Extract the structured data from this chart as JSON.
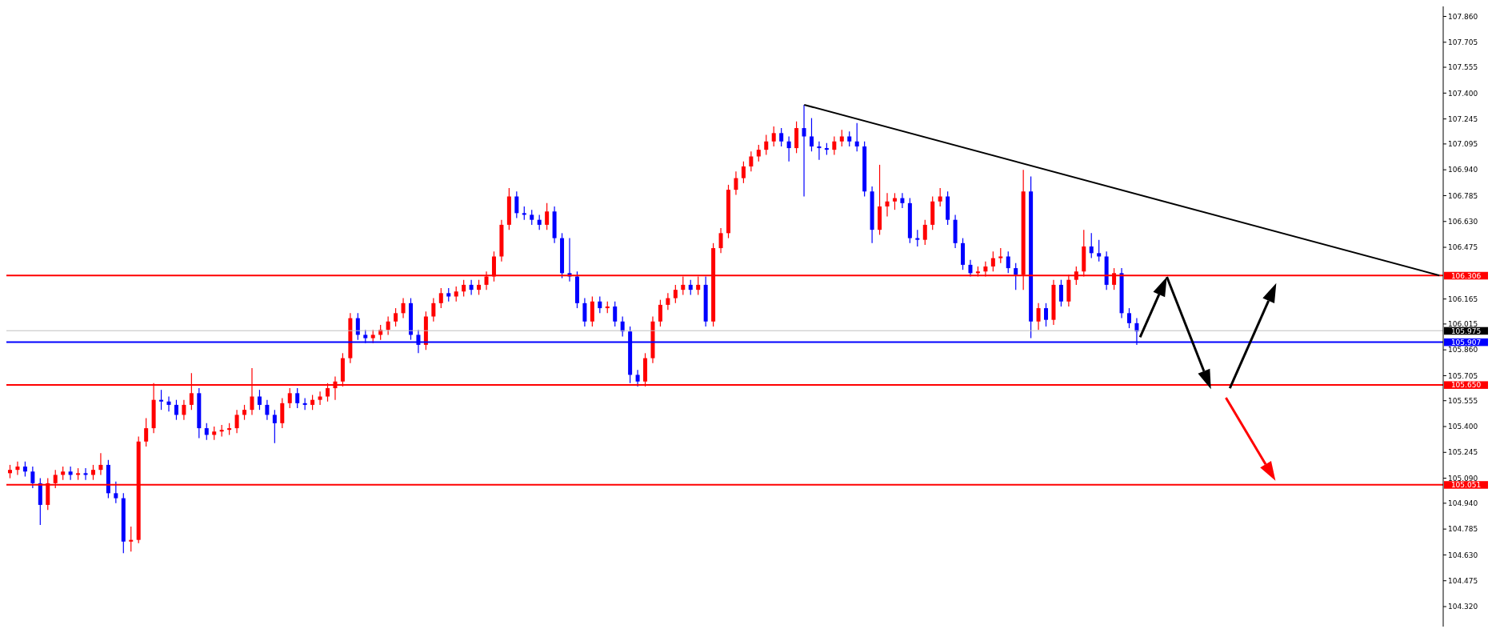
{
  "chart_data": {
    "type": "candlestick",
    "categories": [
      null,
      null,
      null,
      null,
      null,
      null,
      null,
      null,
      null,
      null,
      null,
      null,
      null,
      null,
      null,
      null,
      null,
      null,
      null,
      null,
      null,
      null,
      null,
      null,
      null,
      null,
      null,
      null,
      null,
      null,
      null,
      null,
      null,
      null,
      null,
      null,
      null,
      null,
      null,
      null,
      null,
      null,
      null,
      null,
      null,
      null,
      null,
      null,
      null,
      null,
      null,
      null,
      null,
      null,
      null,
      null,
      null,
      null,
      null,
      null,
      null,
      null,
      null,
      null,
      null,
      null,
      null,
      null,
      null,
      null,
      null,
      null,
      null,
      null,
      null,
      null,
      null,
      null,
      null,
      null,
      null,
      null,
      null,
      null,
      null,
      null,
      null,
      null,
      null,
      null,
      null,
      null,
      null,
      null,
      null,
      null,
      null,
      null,
      null,
      null,
      null,
      null,
      null,
      null,
      null,
      null,
      null,
      null,
      null,
      null,
      null,
      null,
      null,
      null,
      null,
      null,
      null,
      null,
      null,
      null,
      null,
      null,
      null,
      null,
      null,
      null,
      null,
      null,
      null,
      null,
      null,
      null,
      null,
      null,
      null,
      null,
      null,
      null,
      null,
      null,
      null,
      null,
      null,
      null,
      null,
      null,
      null,
      null,
      null,
      null,
      null,
      null,
      null,
      null,
      null,
      null,
      null,
      null,
      null,
      null,
      null,
      null,
      null,
      null,
      null,
      null,
      null,
      null,
      null,
      null,
      null,
      null,
      null,
      null,
      null,
      null,
      null,
      null,
      null,
      null,
      null,
      null,
      null,
      null,
      null,
      null,
      null,
      null,
      null,
      null
    ],
    "ohlc": [
      [
        105.12,
        105.17,
        105.09,
        105.14
      ],
      [
        105.14,
        105.19,
        105.11,
        105.16
      ],
      [
        105.16,
        105.19,
        105.1,
        105.13
      ],
      [
        105.13,
        105.16,
        105.03,
        105.06
      ],
      [
        105.06,
        105.09,
        104.81,
        104.93
      ],
      [
        104.93,
        105.09,
        104.9,
        105.06
      ],
      [
        105.06,
        105.14,
        105.03,
        105.11
      ],
      [
        105.11,
        105.16,
        105.08,
        105.13
      ],
      [
        105.13,
        105.16,
        105.08,
        105.11
      ],
      [
        105.11,
        105.15,
        105.08,
        105.12
      ],
      [
        105.12,
        105.15,
        105.08,
        105.11
      ],
      [
        105.11,
        105.17,
        105.08,
        105.14
      ],
      [
        105.14,
        105.24,
        105.11,
        105.17
      ],
      [
        105.17,
        105.2,
        104.97,
        105.0
      ],
      [
        105.0,
        105.07,
        104.94,
        104.97
      ],
      [
        104.97,
        105.0,
        104.64,
        104.71
      ],
      [
        104.71,
        104.8,
        104.65,
        104.72
      ],
      [
        104.72,
        105.34,
        104.7,
        105.31
      ],
      [
        105.31,
        105.45,
        105.28,
        105.39
      ],
      [
        105.39,
        105.66,
        105.36,
        105.56
      ],
      [
        105.56,
        105.62,
        105.5,
        105.55
      ],
      [
        105.55,
        105.58,
        105.49,
        105.53
      ],
      [
        105.53,
        105.56,
        105.44,
        105.47
      ],
      [
        105.47,
        105.56,
        105.44,
        105.53
      ],
      [
        105.53,
        105.72,
        105.5,
        105.6
      ],
      [
        105.6,
        105.63,
        105.33,
        105.39
      ],
      [
        105.39,
        105.42,
        105.32,
        105.35
      ],
      [
        105.35,
        105.4,
        105.32,
        105.37
      ],
      [
        105.37,
        105.41,
        105.34,
        105.38
      ],
      [
        105.38,
        105.42,
        105.35,
        105.39
      ],
      [
        105.39,
        105.5,
        105.36,
        105.47
      ],
      [
        105.47,
        105.53,
        105.44,
        105.5
      ],
      [
        105.5,
        105.75,
        105.47,
        105.58
      ],
      [
        105.58,
        105.62,
        105.5,
        105.53
      ],
      [
        105.53,
        105.56,
        105.44,
        105.47
      ],
      [
        105.47,
        105.5,
        105.3,
        105.42
      ],
      [
        105.42,
        105.57,
        105.39,
        105.54
      ],
      [
        105.54,
        105.63,
        105.51,
        105.6
      ],
      [
        105.6,
        105.63,
        105.51,
        105.54
      ],
      [
        105.54,
        105.57,
        105.5,
        105.53
      ],
      [
        105.53,
        105.59,
        105.5,
        105.56
      ],
      [
        105.56,
        105.61,
        105.53,
        105.58
      ],
      [
        105.58,
        105.66,
        105.55,
        105.63
      ],
      [
        105.63,
        105.7,
        105.56,
        105.67
      ],
      [
        105.67,
        105.84,
        105.64,
        105.81
      ],
      [
        105.81,
        106.08,
        105.78,
        106.05
      ],
      [
        106.05,
        106.08,
        105.92,
        105.95
      ],
      [
        105.95,
        105.98,
        105.9,
        105.93
      ],
      [
        105.93,
        105.98,
        105.9,
        105.95
      ],
      [
        105.95,
        106.01,
        105.92,
        105.98
      ],
      [
        105.98,
        106.06,
        105.95,
        106.03
      ],
      [
        106.03,
        106.11,
        106.0,
        106.08
      ],
      [
        106.08,
        106.17,
        106.05,
        106.14
      ],
      [
        106.14,
        106.17,
        105.92,
        105.95
      ],
      [
        105.95,
        105.98,
        105.84,
        105.89
      ],
      [
        105.89,
        106.09,
        105.86,
        106.06
      ],
      [
        106.06,
        106.17,
        106.03,
        106.14
      ],
      [
        106.14,
        106.23,
        106.11,
        106.2
      ],
      [
        106.2,
        106.23,
        106.15,
        106.18
      ],
      [
        106.18,
        106.24,
        106.15,
        106.21
      ],
      [
        106.21,
        106.28,
        106.18,
        106.25
      ],
      [
        106.25,
        106.28,
        106.19,
        106.22
      ],
      [
        106.22,
        106.28,
        106.19,
        106.25
      ],
      [
        106.25,
        106.33,
        106.22,
        106.3
      ],
      [
        106.3,
        106.45,
        106.27,
        106.42
      ],
      [
        106.42,
        106.64,
        106.39,
        106.61
      ],
      [
        106.61,
        106.83,
        106.58,
        106.78
      ],
      [
        106.78,
        106.81,
        106.65,
        106.68
      ],
      [
        106.68,
        106.72,
        106.64,
        106.67
      ],
      [
        106.67,
        106.7,
        106.61,
        106.64
      ],
      [
        106.64,
        106.67,
        106.58,
        106.61
      ],
      [
        106.61,
        106.74,
        106.58,
        106.69
      ],
      [
        106.69,
        106.72,
        106.5,
        106.53
      ],
      [
        106.53,
        106.56,
        106.29,
        106.32
      ],
      [
        106.32,
        106.53,
        106.27,
        106.3
      ],
      [
        106.3,
        106.33,
        106.11,
        106.14
      ],
      [
        106.14,
        106.17,
        106.0,
        106.03
      ],
      [
        106.03,
        106.18,
        106.0,
        106.15
      ],
      [
        106.15,
        106.18,
        106.08,
        106.11
      ],
      [
        106.11,
        106.15,
        106.08,
        106.12
      ],
      [
        106.12,
        106.15,
        106.0,
        106.03
      ],
      [
        106.03,
        106.06,
        105.94,
        105.97
      ],
      [
        105.97,
        106.0,
        105.66,
        105.71
      ],
      [
        105.71,
        105.74,
        105.64,
        105.67
      ],
      [
        105.67,
        105.84,
        105.64,
        105.81
      ],
      [
        105.81,
        106.06,
        105.78,
        106.03
      ],
      [
        106.03,
        106.16,
        106.0,
        106.13
      ],
      [
        106.13,
        106.2,
        106.1,
        106.17
      ],
      [
        106.17,
        106.25,
        106.14,
        106.22
      ],
      [
        106.22,
        106.3,
        106.19,
        106.25
      ],
      [
        106.25,
        106.28,
        106.19,
        106.22
      ],
      [
        106.22,
        106.3,
        106.19,
        106.25
      ],
      [
        106.25,
        106.3,
        106.0,
        106.03
      ],
      [
        106.03,
        106.5,
        106.0,
        106.47
      ],
      [
        106.47,
        106.59,
        106.44,
        106.56
      ],
      [
        106.56,
        106.85,
        106.53,
        106.82
      ],
      [
        106.82,
        106.93,
        106.79,
        106.89
      ],
      [
        106.89,
        106.99,
        106.86,
        106.96
      ],
      [
        106.96,
        107.05,
        106.93,
        107.02
      ],
      [
        107.02,
        107.09,
        106.99,
        107.06
      ],
      [
        107.06,
        107.15,
        107.03,
        107.11
      ],
      [
        107.11,
        107.2,
        107.08,
        107.16
      ],
      [
        107.16,
        107.19,
        107.08,
        107.11
      ],
      [
        107.11,
        107.14,
        106.99,
        107.07
      ],
      [
        107.07,
        107.23,
        107.04,
        107.19
      ],
      [
        107.19,
        107.33,
        106.78,
        107.14
      ],
      [
        107.14,
        107.25,
        107.05,
        107.08
      ],
      [
        107.08,
        107.11,
        107.0,
        107.07
      ],
      [
        107.07,
        107.1,
        107.03,
        107.06
      ],
      [
        107.06,
        107.14,
        107.03,
        107.11
      ],
      [
        107.11,
        107.18,
        107.08,
        107.14
      ],
      [
        107.14,
        107.17,
        107.08,
        107.11
      ],
      [
        107.11,
        107.22,
        107.05,
        107.08
      ],
      [
        107.08,
        107.11,
        106.78,
        106.81
      ],
      [
        106.81,
        106.84,
        106.5,
        106.58
      ],
      [
        106.58,
        106.97,
        106.55,
        106.72
      ],
      [
        106.72,
        106.8,
        106.66,
        106.75
      ],
      [
        106.75,
        106.8,
        106.7,
        106.77
      ],
      [
        106.77,
        106.8,
        106.71,
        106.74
      ],
      [
        106.74,
        106.77,
        106.5,
        106.53
      ],
      [
        106.53,
        106.58,
        106.48,
        106.52
      ],
      [
        106.52,
        106.64,
        106.49,
        106.61
      ],
      [
        106.61,
        106.78,
        106.58,
        106.75
      ],
      [
        106.75,
        106.83,
        106.72,
        106.78
      ],
      [
        106.78,
        106.81,
        106.61,
        106.64
      ],
      [
        106.64,
        106.67,
        106.47,
        106.5
      ],
      [
        106.5,
        106.53,
        106.34,
        106.37
      ],
      [
        106.37,
        106.4,
        106.3,
        106.32
      ],
      [
        106.32,
        106.36,
        106.3,
        106.33
      ],
      [
        106.33,
        106.39,
        106.3,
        106.36
      ],
      [
        106.36,
        106.45,
        106.33,
        106.41
      ],
      [
        106.41,
        106.47,
        106.38,
        106.42
      ],
      [
        106.42,
        106.45,
        106.32,
        106.35
      ],
      [
        106.35,
        106.38,
        106.22,
        106.31
      ],
      [
        106.31,
        106.94,
        106.22,
        106.81
      ],
      [
        106.81,
        106.9,
        105.93,
        106.03
      ],
      [
        106.03,
        106.14,
        105.98,
        106.11
      ],
      [
        106.11,
        106.14,
        106.0,
        106.04
      ],
      [
        106.04,
        106.28,
        106.01,
        106.25
      ],
      [
        106.25,
        106.28,
        106.12,
        106.15
      ],
      [
        106.15,
        106.31,
        106.12,
        106.28
      ],
      [
        106.28,
        106.36,
        106.25,
        106.33
      ],
      [
        106.33,
        106.58,
        106.3,
        106.48
      ],
      [
        106.48,
        106.56,
        106.41,
        106.44
      ],
      [
        106.44,
        106.52,
        106.39,
        106.42
      ],
      [
        106.42,
        106.45,
        106.22,
        106.25
      ],
      [
        106.25,
        106.35,
        106.22,
        106.32
      ],
      [
        106.32,
        106.35,
        106.05,
        106.08
      ],
      [
        106.08,
        106.11,
        105.99,
        106.02
      ],
      [
        106.02,
        106.05,
        105.89,
        105.97
      ],
      null,
      null,
      null,
      null,
      null,
      null,
      null,
      null,
      null,
      null,
      null,
      null,
      null,
      null,
      null,
      null,
      null,
      null,
      null,
      null,
      null,
      null,
      null,
      null,
      null,
      null,
      null,
      null,
      null,
      null,
      null,
      null,
      null,
      null,
      null,
      null,
      null,
      null,
      null,
      null
    ],
    "colors": [
      "#ff0000",
      "#ff0000",
      "#0000ff",
      "#0000ff",
      "#0000ff",
      "#ff0000",
      "#ff0000",
      "#ff0000",
      "#0000ff",
      "#ff0000",
      "#0000ff",
      "#ff0000",
      "#ff0000",
      "#0000ff",
      "#0000ff",
      "#0000ff",
      "#ff0000",
      "#ff0000",
      "#ff0000",
      "#ff0000",
      "#0000ff",
      "#0000ff",
      "#0000ff",
      "#ff0000",
      "#ff0000",
      "#0000ff",
      "#0000ff",
      "#ff0000",
      "#ff0000",
      "#ff0000",
      "#ff0000",
      "#ff0000",
      "#ff0000",
      "#0000ff",
      "#0000ff",
      "#0000ff",
      "#ff0000",
      "#ff0000",
      "#0000ff",
      "#0000ff",
      "#ff0000",
      "#ff0000",
      "#ff0000",
      "#ff0000",
      "#ff0000",
      "#ff0000",
      "#0000ff",
      "#0000ff",
      "#ff0000",
      "#ff0000",
      "#ff0000",
      "#ff0000",
      "#ff0000",
      "#0000ff",
      "#0000ff",
      "#ff0000",
      "#ff0000",
      "#ff0000",
      "#0000ff",
      "#ff0000",
      "#ff0000",
      "#0000ff",
      "#ff0000",
      "#ff0000",
      "#ff0000",
      "#ff0000",
      "#ff0000",
      "#0000ff",
      "#0000ff",
      "#0000ff",
      "#0000ff",
      "#ff0000",
      "#0000ff",
      "#0000ff",
      "#0000ff",
      "#0000ff",
      "#0000ff",
      "#ff0000",
      "#0000ff",
      "#ff0000",
      "#0000ff",
      "#0000ff",
      "#0000ff",
      "#0000ff",
      "#ff0000",
      "#ff0000",
      "#ff0000",
      "#ff0000",
      "#ff0000",
      "#ff0000",
      "#0000ff",
      "#ff0000",
      "#0000ff",
      "#ff0000",
      "#ff0000",
      "#ff0000",
      "#ff0000",
      "#ff0000",
      "#ff0000",
      "#ff0000",
      "#ff0000",
      "#ff0000",
      "#0000ff",
      "#0000ff",
      "#ff0000",
      "#0000ff",
      "#0000ff",
      "#0000ff",
      "#0000ff",
      "#ff0000",
      "#ff0000",
      "#0000ff",
      "#0000ff",
      "#0000ff",
      "#0000ff",
      "#ff0000",
      "#ff0000",
      "#ff0000",
      "#0000ff",
      "#0000ff",
      "#0000ff",
      "#ff0000",
      "#ff0000",
      "#ff0000",
      "#0000ff",
      "#0000ff",
      "#0000ff",
      "#0000ff",
      "#ff0000",
      "#ff0000",
      "#ff0000",
      "#ff0000",
      "#0000ff",
      "#0000ff",
      "#ff0000",
      "#0000ff",
      "#ff0000",
      "#0000ff",
      "#ff0000",
      "#0000ff",
      "#ff0000",
      "#ff0000",
      "#ff0000",
      "#0000ff",
      "#0000ff",
      "#0000ff",
      "#ff0000",
      "#0000ff",
      "#0000ff",
      "#0000ff",
      null,
      null,
      null,
      null,
      null,
      null,
      null,
      null,
      null,
      null,
      null,
      null,
      null,
      null,
      null,
      null,
      null,
      null,
      null,
      null,
      null,
      null,
      null,
      null,
      null,
      null,
      null,
      null,
      null,
      null,
      null,
      null,
      null,
      null,
      null,
      null,
      null,
      null,
      null,
      null
    ],
    "series": [
      {
        "type": "line",
        "color": "#000000",
        "values": [
          null,
          null,
          null,
          null,
          null,
          null,
          null,
          null,
          null,
          null,
          null,
          null,
          null,
          null,
          null,
          null,
          null,
          null,
          null,
          null,
          null,
          null,
          null,
          null,
          null,
          null,
          null,
          null,
          null,
          null,
          null,
          null,
          null,
          null,
          null,
          null,
          null,
          null,
          null,
          null,
          null,
          null,
          null,
          null,
          null,
          null,
          null,
          null,
          null,
          null,
          null,
          null,
          null,
          null,
          null,
          null,
          null,
          null,
          null,
          null,
          null,
          null,
          null,
          null,
          null,
          null,
          null,
          null,
          null,
          null,
          null,
          null,
          null,
          null,
          null,
          null,
          null,
          null,
          null,
          null,
          null,
          null,
          null,
          null,
          null,
          null,
          null,
          null,
          null,
          null,
          null,
          null,
          null,
          null,
          null,
          null,
          null,
          null,
          null,
          null,
          null,
          null,
          null,
          null,
          null,
          107.33,
          null,
          null,
          null,
          null,
          null,
          null,
          null,
          null,
          null,
          null,
          null,
          null,
          null,
          null,
          null,
          null,
          null,
          null,
          null,
          null,
          null,
          null,
          null,
          null,
          null,
          null,
          null,
          null,
          null,
          null,
          null,
          null,
          null,
          null,
          null,
          null,
          null,
          null,
          null,
          null,
          null,
          null,
          null,
          null,
          null,
          null,
          null,
          null,
          null,
          null,
          null,
          null,
          null,
          null,
          null,
          null,
          null,
          null,
          null,
          null,
          null,
          null,
          null,
          null,
          null,
          null,
          null,
          null,
          null,
          null,
          null,
          null,
          null,
          null,
          null,
          null,
          null,
          null,
          null,
          null,
          null,
          null,
          null,
          106.306
        ]
      }
    ],
    "ylim": [
      104.2,
      107.92
    ],
    "yticks": [
      {
        "value": 104.32,
        "label": "104.320"
      },
      {
        "value": 104.475,
        "label": "104.475"
      },
      {
        "value": 104.63,
        "label": "104.630"
      },
      {
        "value": 104.785,
        "label": "104.785"
      },
      {
        "value": 104.94,
        "label": "104.940"
      },
      {
        "value": 105.09,
        "label": "105.090"
      },
      {
        "value": 105.245,
        "label": "105.245"
      },
      {
        "value": 105.4,
        "label": "105.400"
      },
      {
        "value": 105.555,
        "label": "105.555"
      },
      {
        "value": 105.705,
        "label": "105.705"
      },
      {
        "value": 105.86,
        "label": "105.860"
      },
      {
        "value": 106.015,
        "label": "106.015"
      },
      {
        "value": 106.165,
        "label": "106.165"
      },
      {
        "value": 106.475,
        "label": "106.475"
      },
      {
        "value": 106.63,
        "label": "106.630"
      },
      {
        "value": 106.785,
        "label": "106.785"
      },
      {
        "value": 106.94,
        "label": "106.940"
      },
      {
        "value": 107.095,
        "label": "107.095"
      },
      {
        "value": 107.245,
        "label": "107.245"
      },
      {
        "value": 107.4,
        "label": "107.400"
      },
      {
        "value": 107.555,
        "label": "107.555"
      },
      {
        "value": 107.705,
        "label": "107.705"
      },
      {
        "value": 107.86,
        "label": "107.860"
      }
    ],
    "ref_lines": [
      {
        "axis": "y",
        "value": 106.306,
        "label": "106.306",
        "color": "#ff0000"
      },
      {
        "axis": "y",
        "value": 105.975,
        "label": "105.975",
        "color": "#c0c0c0"
      },
      {
        "axis": "y",
        "value": 105.907,
        "label": "105.907",
        "color": "#0000ff"
      },
      {
        "axis": "y",
        "value": 105.65,
        "label": "105.650",
        "color": "#ff0000"
      },
      {
        "axis": "y",
        "value": 105.051,
        "label": "105.051",
        "color": "#ff0000"
      }
    ],
    "tick_labels": "y"
  }
}
